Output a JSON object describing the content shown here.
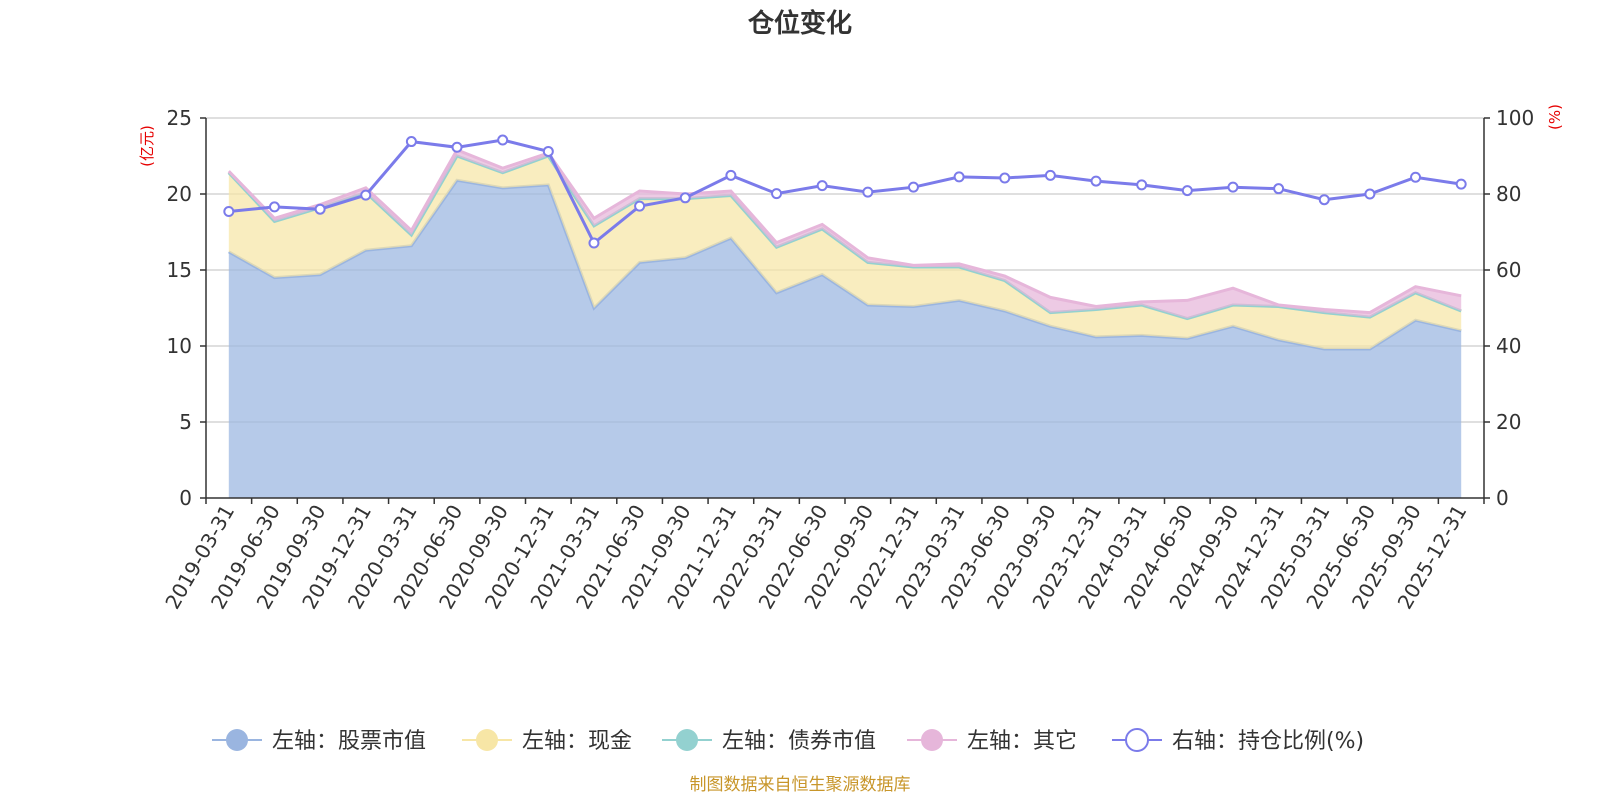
{
  "chart_data": {
    "type": "area",
    "title": "仓位变化",
    "left_axis": {
      "unit": "(亿元)",
      "range": [
        0,
        25
      ],
      "ticks": [
        0,
        5,
        10,
        15,
        20,
        25
      ]
    },
    "right_axis": {
      "unit": "(%)",
      "range": [
        0,
        100
      ],
      "ticks": [
        0,
        20,
        40,
        60,
        80,
        100
      ]
    },
    "categories": [
      "2019-03-31",
      "2019-06-30",
      "2019-09-30",
      "2019-12-31",
      "2020-03-31",
      "2020-06-30",
      "2020-09-30",
      "2020-12-31",
      "2021-03-31",
      "2021-06-30",
      "2021-09-30",
      "2021-12-31",
      "2022-03-31",
      "2022-06-30",
      "2022-09-30",
      "2022-12-31",
      "2023-03-31",
      "2023-06-30",
      "2023-09-30",
      "2023-12-31",
      "2024-03-31",
      "2024-06-30",
      "2024-09-30",
      "2024-12-31",
      "2025-03-31",
      "2025-06-30",
      "2025-09-30",
      "2025-12-31"
    ],
    "series": [
      {
        "name": "左轴：股票市值",
        "axis": "left",
        "stack": true,
        "color": "#9ab5e0",
        "values": [
          16.2,
          14.5,
          14.7,
          16.3,
          16.6,
          20.9,
          20.4,
          20.6,
          12.5,
          15.5,
          15.8,
          17.1,
          13.5,
          14.7,
          12.7,
          12.6,
          13.0,
          12.3,
          11.3,
          10.6,
          10.7,
          10.5,
          11.3,
          10.4,
          9.8,
          9.8,
          11.7,
          11.0
        ]
      },
      {
        "name": "左轴：现金",
        "axis": "left",
        "stack": true,
        "color": "#f7e6a6",
        "values": [
          5.2,
          3.7,
          4.4,
          3.8,
          0.7,
          1.6,
          1.0,
          1.9,
          5.4,
          4.2,
          3.9,
          2.8,
          3.0,
          3.0,
          2.8,
          2.6,
          2.2,
          2.0,
          0.9,
          1.8,
          2.0,
          1.3,
          1.4,
          2.2,
          2.4,
          2.1,
          1.8,
          1.3
        ]
      },
      {
        "name": "左轴：债券市值",
        "axis": "left",
        "stack": true,
        "color": "#93d1d0",
        "values": [
          0,
          0,
          0,
          0,
          0,
          0,
          0,
          0,
          0,
          0,
          0,
          0,
          0,
          0,
          0,
          0,
          0,
          0,
          0,
          0,
          0,
          0,
          0,
          0,
          0,
          0,
          0,
          0
        ]
      },
      {
        "name": "左轴：其它",
        "axis": "left",
        "stack": true,
        "color": "#e6b6da",
        "values": [
          0.1,
          0.2,
          0.2,
          0.3,
          0.3,
          0.4,
          0.3,
          0.2,
          0.5,
          0.5,
          0.3,
          0.3,
          0.3,
          0.3,
          0.3,
          0.1,
          0.2,
          0.3,
          1.0,
          0.2,
          0.2,
          1.2,
          1.1,
          0.1,
          0.2,
          0.3,
          0.4,
          1.0
        ]
      },
      {
        "name": "右轴：持仓比例(%)",
        "axis": "right",
        "stack": false,
        "color": "#7b7bea",
        "values": [
          75.4,
          76.6,
          76.0,
          79.7,
          93.8,
          92.3,
          94.2,
          91.2,
          67.1,
          76.8,
          79.0,
          84.9,
          80.1,
          82.2,
          80.5,
          81.8,
          84.5,
          84.2,
          84.9,
          83.4,
          82.4,
          80.9,
          81.8,
          81.4,
          78.5,
          80.0,
          84.4,
          82.6
        ]
      }
    ],
    "legend_position": "bottom"
  },
  "footer": {
    "source": "制图数据来自恒生聚源数据库"
  }
}
